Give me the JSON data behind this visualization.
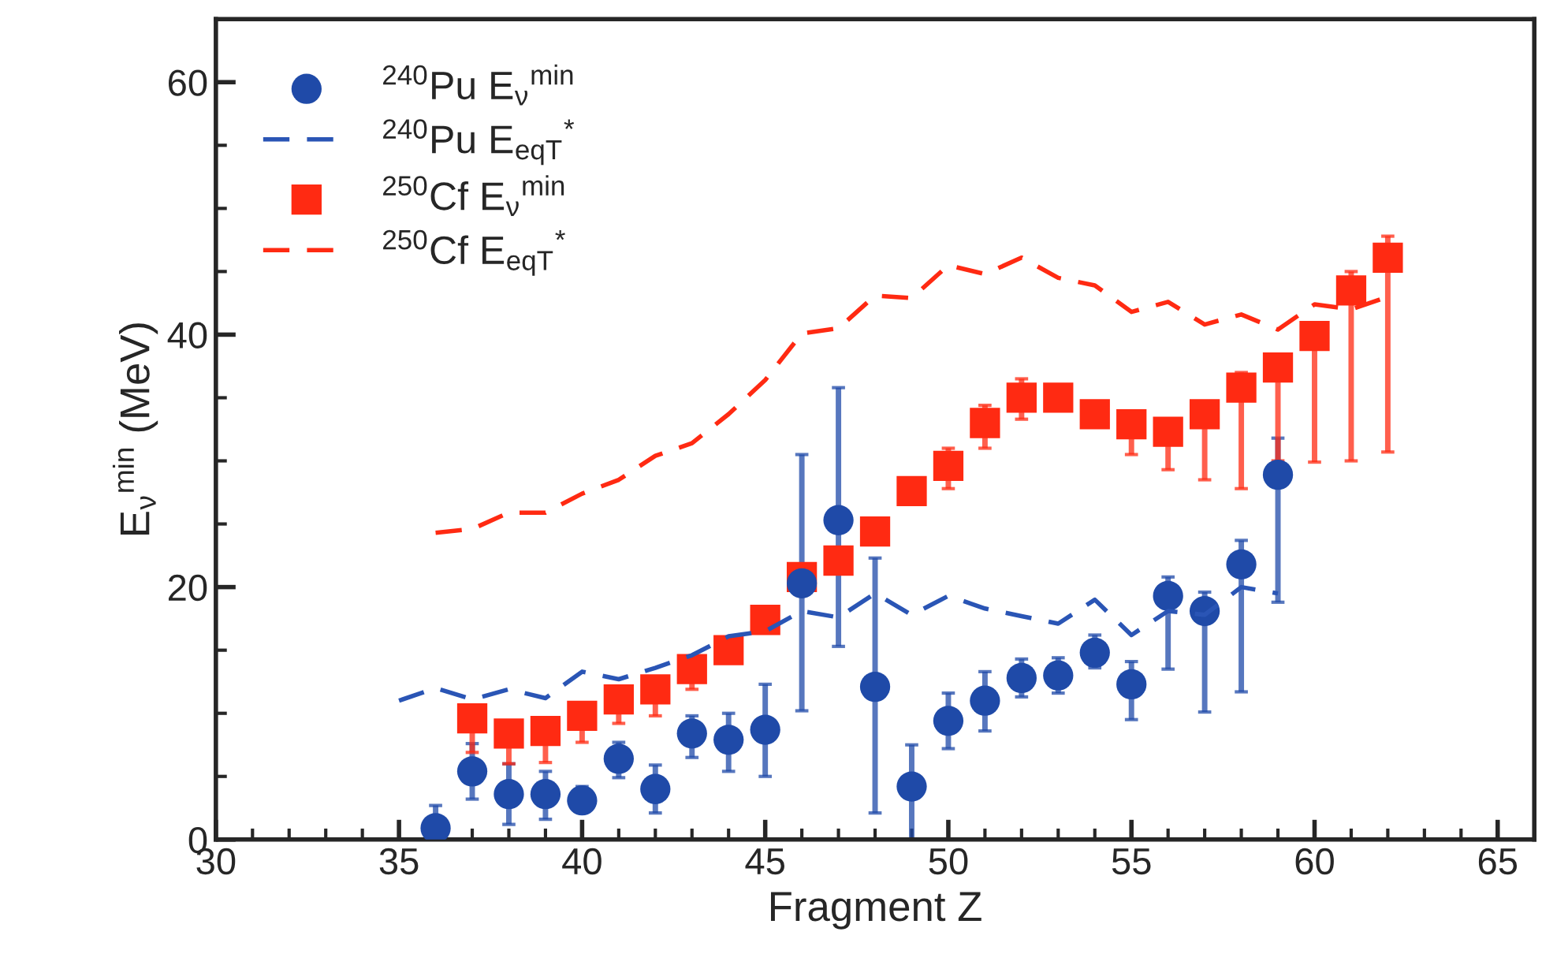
{
  "chart_data": {
    "type": "scatter",
    "xlabel": "Fragment Z",
    "ylabel": "E$_{ν}$$^{min}$ (MeV)",
    "xlim": [
      30,
      66
    ],
    "ylim": [
      0,
      65
    ],
    "xticks": [
      30,
      35,
      40,
      45,
      50,
      55,
      60,
      65
    ],
    "yticks": [
      0,
      20,
      40,
      60
    ],
    "legend": "top left",
    "grid": false,
    "series": [
      {
        "name": "$^{240}$Pu E$_{ν}$$^{min}$",
        "type": "scatter",
        "marker": "circle",
        "color": "#1f4aa8",
        "x": [
          36,
          37,
          38,
          39,
          40,
          41,
          42,
          43,
          44,
          45,
          46,
          47,
          48,
          49,
          50,
          51,
          52,
          53,
          54,
          55,
          56,
          57,
          58,
          59
        ],
        "values": [
          0.9,
          5.4,
          3.6,
          3.6,
          3.1,
          6.4,
          4.0,
          8.4,
          7.9,
          8.7,
          20.3,
          25.3,
          12.1,
          4.2,
          9.4,
          11.0,
          12.8,
          13.0,
          14.8,
          12.3,
          19.3,
          18.1,
          21.8,
          28.9
        ],
        "errors": [
          [
            0,
            2.7
          ],
          [
            3.2,
            7.6
          ],
          [
            1.2,
            6.0
          ],
          [
            1.6,
            5.4
          ],
          [
            2.2,
            4.2
          ],
          [
            4.9,
            7.7
          ],
          [
            2.1,
            5.9
          ],
          [
            6.5,
            9.8
          ],
          [
            5.4,
            10.0
          ],
          [
            5.0,
            12.3
          ],
          [
            10.2,
            30.5
          ],
          [
            15.3,
            35.8
          ],
          [
            2.1,
            22.3
          ],
          [
            0,
            7.5
          ],
          [
            7.2,
            11.6
          ],
          [
            8.6,
            13.3
          ],
          [
            11.3,
            14.3
          ],
          [
            11.6,
            14.4
          ],
          [
            13.6,
            16.2
          ],
          [
            9.5,
            14.1
          ],
          [
            13.5,
            20.8
          ],
          [
            10.1,
            19.6
          ],
          [
            11.7,
            23.7
          ],
          [
            18.8,
            31.8
          ]
        ]
      },
      {
        "name": "$^{240}$Pu E$_{eqT}$$^{*}$",
        "type": "line",
        "marker": "none",
        "line_style": "dashed",
        "color": "#2a55b5",
        "x": [
          35,
          36,
          37,
          38,
          39,
          40,
          41,
          42,
          43,
          44,
          45,
          46,
          47,
          48,
          49,
          50,
          51,
          52,
          53,
          54,
          55,
          56,
          57,
          58,
          59
        ],
        "values": [
          11.0,
          12.0,
          11.1,
          11.9,
          11.2,
          13.3,
          12.7,
          13.6,
          14.6,
          16.1,
          16.5,
          18.1,
          17.6,
          19.5,
          17.8,
          19.3,
          18.3,
          17.7,
          17.1,
          19.0,
          16.2,
          18.1,
          17.8,
          20.0,
          19.5
        ]
      },
      {
        "name": "$^{250}$Cf E$_{ν}$$^{min}$",
        "type": "scatter",
        "marker": "square",
        "color": "#ff2a12",
        "x": [
          37,
          38,
          39,
          40,
          41,
          42,
          43,
          44,
          45,
          46,
          47,
          48,
          49,
          50,
          51,
          52,
          53,
          54,
          55,
          56,
          57,
          58,
          59,
          60,
          61,
          62
        ],
        "values": [
          9.6,
          8.4,
          8.6,
          9.8,
          11.1,
          11.9,
          13.5,
          15.0,
          17.4,
          20.8,
          22.1,
          24.4,
          27.6,
          29.6,
          33.0,
          35.0,
          35.0,
          33.7,
          32.9,
          32.3,
          33.7,
          35.8,
          37.4,
          39.9,
          43.5,
          46.1
        ],
        "errors": [
          [
            6.9,
            9.6
          ],
          [
            6.0,
            8.4
          ],
          [
            6.1,
            8.6
          ],
          [
            7.7,
            9.8
          ],
          [
            9.2,
            11.1
          ],
          [
            9.8,
            11.9
          ],
          [
            11.9,
            13.5
          ],
          null,
          null,
          null,
          null,
          null,
          null,
          [
            27.8,
            31.0
          ],
          [
            31.0,
            34.4
          ],
          [
            33.3,
            36.5
          ],
          null,
          null,
          [
            30.5,
            32.9
          ],
          [
            29.3,
            32.3
          ],
          [
            28.5,
            33.7
          ],
          [
            27.8,
            37.0
          ],
          [
            30.0,
            37.4
          ],
          [
            29.9,
            39.9
          ],
          [
            30.0,
            45.0
          ],
          [
            30.7,
            47.8
          ]
        ]
      },
      {
        "name": "$^{250}$Cf E$_{eqT}$$^{*}$",
        "type": "line",
        "marker": "none",
        "line_style": "dashed",
        "color": "#ff2a12",
        "x": [
          36,
          37,
          38,
          39,
          40,
          41,
          42,
          43,
          44,
          45,
          46,
          47,
          48,
          49,
          50,
          51,
          52,
          53,
          54,
          55,
          56,
          57,
          58,
          59,
          60,
          61,
          62
        ],
        "values": [
          24.3,
          24.6,
          25.9,
          25.9,
          27.4,
          28.5,
          30.4,
          31.4,
          33.7,
          36.4,
          40.1,
          40.5,
          43.1,
          42.9,
          45.5,
          44.8,
          46.1,
          44.5,
          43.9,
          41.8,
          42.6,
          40.8,
          41.6,
          40.4,
          42.4,
          42.0,
          43.0
        ]
      }
    ]
  }
}
